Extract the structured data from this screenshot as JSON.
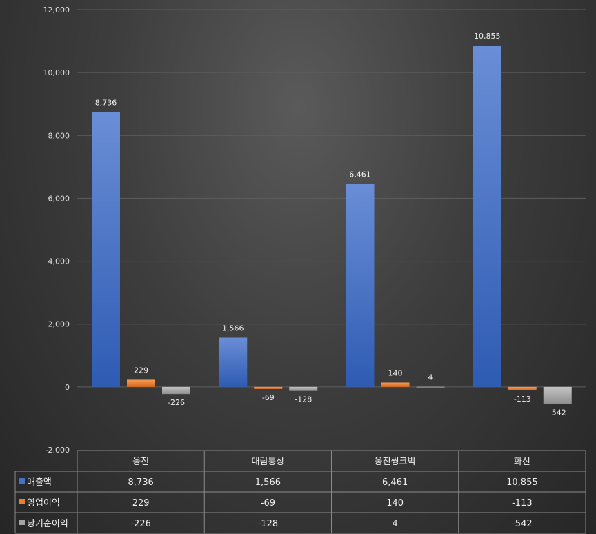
{
  "chart_data": {
    "type": "bar",
    "categories": [
      "웅진",
      "대림통상",
      "웅진씽크빅",
      "화신"
    ],
    "series": [
      {
        "name": "매출액",
        "values": [
          8736,
          1566,
          6461,
          10855
        ],
        "labels": [
          "8,736",
          "1,566",
          "6,461",
          "10,855"
        ],
        "color": "#4472c4"
      },
      {
        "name": "영업이익",
        "values": [
          229,
          -69,
          140,
          -113
        ],
        "labels": [
          "229",
          "-69",
          "140",
          "-113"
        ],
        "color": "#ed7d31"
      },
      {
        "name": "당기순이익",
        "values": [
          -226,
          -128,
          4,
          -542
        ],
        "labels": [
          "-226",
          "-128",
          "4",
          "-542"
        ],
        "color": "#a5a5a5"
      }
    ],
    "ylim": [
      -2000,
      12000
    ],
    "yticks": [
      -2000,
      0,
      2000,
      4000,
      6000,
      8000,
      10000,
      12000
    ],
    "ytick_labels": [
      "-2,000",
      "0",
      "2,000",
      "4,000",
      "6,000",
      "8,000",
      "10,000",
      "12,000"
    ],
    "grid": true,
    "legend": "data-table",
    "title": "",
    "xlabel": "",
    "ylabel": ""
  }
}
